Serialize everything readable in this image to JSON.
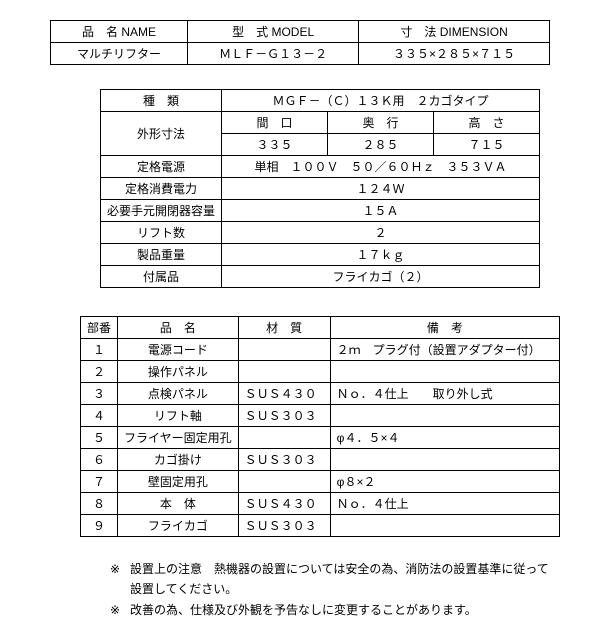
{
  "table1": {
    "headers": {
      "name": "品　名 NAME",
      "model": "型　式 MODEL",
      "dimension": "寸　法 DIMENSION"
    },
    "row": {
      "name": "マルチリフター",
      "model": "ＭＬＦ－Ｇ１３－２",
      "dimension": "３３５×２８５×７１５"
    }
  },
  "table2": {
    "type_label": "種　類",
    "type_value": "ＭＧＦ－（Ｃ）１３Ｋ用　２カゴタイプ",
    "dim_label": "外形寸法",
    "dim_headers": {
      "w": "間　口",
      "d": "奥　行",
      "h": "高　さ"
    },
    "dim_values": {
      "w": "３３５",
      "d": "２８５",
      "h": "７１５"
    },
    "power_label": "定格電源",
    "power_value": "単相　１００Ｖ　５０／６０Ｈｚ　３５３ＶＡ",
    "consumption_label": "定格消費電力",
    "consumption_value": "１２４Ｗ",
    "breaker_label": "必要手元開閉器容量",
    "breaker_value": "１５Ａ",
    "lift_label": "リフト数",
    "lift_value": "２",
    "weight_label": "製品重量",
    "weight_value": "１７ｋｇ",
    "accessory_label": "付属品",
    "accessory_value": "フライカゴ（２）"
  },
  "table3": {
    "headers": {
      "no": "部番",
      "name": "品　名",
      "material": "材　質",
      "remark": "備　考"
    },
    "rows": [
      {
        "no": "１",
        "name": "電源コード",
        "material": "",
        "remark": "２ｍ　プラグ付（設置アダプター付）"
      },
      {
        "no": "２",
        "name": "操作パネル",
        "material": "",
        "remark": ""
      },
      {
        "no": "３",
        "name": "点検パネル",
        "material": "ＳＵＳ４３０",
        "remark": "Ｎｏ．４仕上　　取り外し式"
      },
      {
        "no": "４",
        "name": "リフト軸",
        "material": "ＳＵＳ３０３",
        "remark": ""
      },
      {
        "no": "５",
        "name": "フライヤー固定用孔",
        "material": "",
        "remark": "φ４．５×４"
      },
      {
        "no": "６",
        "name": "カゴ掛け",
        "material": "ＳＵＳ３０３",
        "remark": ""
      },
      {
        "no": "７",
        "name": "壁固定用孔",
        "material": "",
        "remark": "φ８×２"
      },
      {
        "no": "８",
        "name": "本　体",
        "material": "ＳＵＳ４３０",
        "remark": "Ｎｏ．４仕上"
      },
      {
        "no": "９",
        "name": "フライカゴ",
        "material": "ＳＵＳ３０３",
        "remark": ""
      }
    ]
  },
  "notes": {
    "marker": "※",
    "n1": "設置上の注意　熱機器の設置については安全の為、消防法の設置基準に従って設置してください。",
    "n2": "改善の為、仕様及び外観を予告なしに変更することがあります。"
  }
}
